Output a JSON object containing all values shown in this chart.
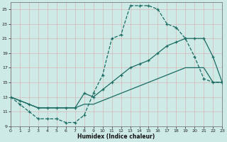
{
  "xlabel": "Humidex (Indice chaleur)",
  "bg_color": "#ceeae7",
  "grid_color": "#b8d8d5",
  "line_color": "#1a6b62",
  "xlim": [
    0,
    23
  ],
  "ylim": [
    9,
    26
  ],
  "xticks": [
    0,
    1,
    2,
    3,
    4,
    5,
    6,
    7,
    8,
    9,
    10,
    11,
    12,
    13,
    14,
    15,
    16,
    17,
    18,
    19,
    20,
    21,
    22,
    23
  ],
  "yticks": [
    9,
    11,
    13,
    15,
    17,
    19,
    21,
    23,
    25
  ],
  "line1_x": [
    0,
    1,
    2,
    3,
    4,
    5,
    6,
    7,
    8,
    9,
    10,
    11,
    12,
    13,
    14,
    15,
    16,
    17,
    18,
    19,
    20,
    21,
    22,
    23
  ],
  "line1_y": [
    13,
    12,
    11,
    10,
    10,
    10,
    9.5,
    9.5,
    10.5,
    13.5,
    16,
    21,
    21.5,
    25.5,
    25.5,
    25.5,
    25,
    23,
    22.5,
    21,
    18.5,
    15.5,
    15,
    15
  ],
  "line2_x": [
    0,
    1,
    2,
    3,
    4,
    5,
    6,
    7,
    8,
    9,
    10,
    11,
    12,
    13,
    14,
    15,
    16,
    17,
    18,
    19,
    20,
    21,
    22,
    23
  ],
  "line2_y": [
    13,
    12.5,
    12,
    11.5,
    11.5,
    11.5,
    11.5,
    11.5,
    13.5,
    13,
    14,
    15,
    16,
    17,
    17.5,
    18,
    19,
    20,
    20.5,
    21,
    21,
    21,
    18.5,
    15
  ],
  "line3_x": [
    0,
    1,
    2,
    3,
    4,
    5,
    6,
    7,
    8,
    9,
    10,
    11,
    12,
    13,
    14,
    15,
    16,
    17,
    18,
    19,
    20,
    21,
    22,
    23
  ],
  "line3_y": [
    13,
    12.5,
    12,
    11.5,
    11.5,
    11.5,
    11.5,
    11.5,
    12,
    12,
    12.5,
    13,
    13.5,
    14,
    14.5,
    15,
    15.5,
    16,
    16.5,
    17,
    17,
    17,
    15,
    15
  ]
}
